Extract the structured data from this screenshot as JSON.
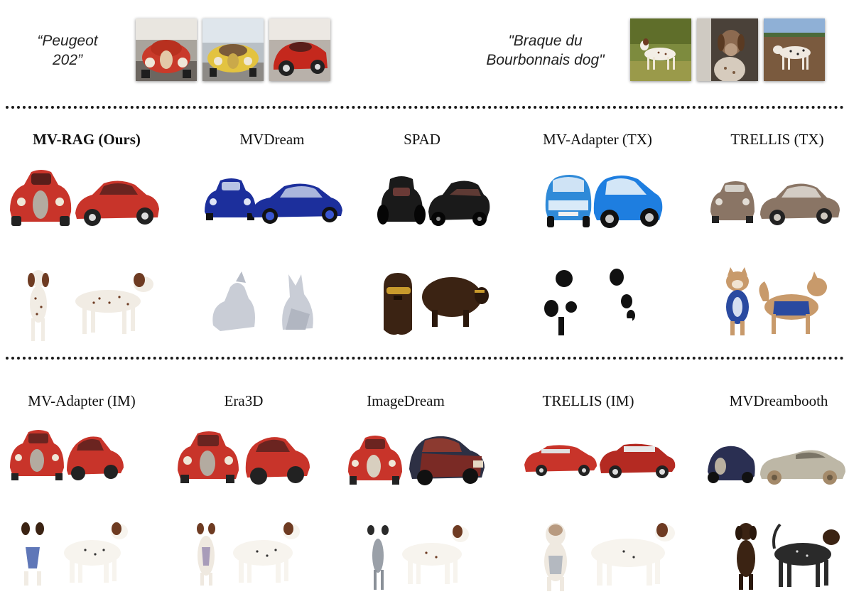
{
  "prompts": {
    "car": {
      "line1": "“Peugeot",
      "line2": "202”"
    },
    "dog": {
      "line1": "\"Braque du",
      "line2": "Bourbonnais dog\""
    }
  },
  "methods": {
    "ours": "MV-RAG (Ours)",
    "mvdream": "MVDream",
    "spad": "SPAD",
    "mvadapter_tx": "MV-Adapter (TX)",
    "trellis_tx": "TRELLIS (TX)",
    "mvadapter_im": "MV-Adapter (IM)",
    "era3d": "Era3D",
    "imagedream": "ImageDream",
    "trellis_im": "TRELLIS (IM)",
    "mvdreambooth": "MVDreambooth"
  },
  "colors": {
    "red_car": "#c8342a",
    "blue_car": "#1c2f9c",
    "black_car": "#1a1a1a",
    "light_blue_car": "#2f8ad8",
    "brown_car": "#8a7565",
    "dog_white": "#f1ece4",
    "dog_liver": "#6e3b22",
    "dog_grey": "#c9cdd6",
    "dog_dark": "#3b2313",
    "dog_tan": "#c89a6b",
    "dog_navy": "#2a4aa0"
  }
}
